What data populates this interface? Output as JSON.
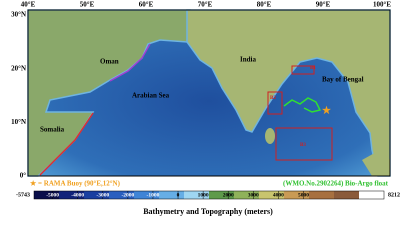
{
  "map": {
    "lon_labels": [
      "40°E",
      "50°E",
      "60°E",
      "70°E",
      "80°E",
      "90°E",
      "100°E"
    ],
    "lat_labels": [
      "30°N",
      "20°N",
      "10°N",
      "0°"
    ],
    "places": {
      "oman": "Oman",
      "somalia": "Somalia",
      "arabian_sea": "Arabian Sea",
      "india": "India",
      "bay": "Bay of Bengal"
    },
    "boxes": [
      "B1",
      "B2",
      "B3"
    ],
    "legend": {
      "buoy": "★ = RAMA Buoy (90°E,12°N)",
      "float": "(WMO.No.2902264) Bio-Argo float"
    },
    "colorbar": {
      "title": "Bathymetry and Topography (meters)",
      "min": -5743,
      "max": 8212,
      "ticks": [
        -5000,
        -4000,
        -3000,
        -2000,
        -1000,
        0,
        1000,
        2000,
        3000,
        4000,
        5000
      ]
    }
  }
}
